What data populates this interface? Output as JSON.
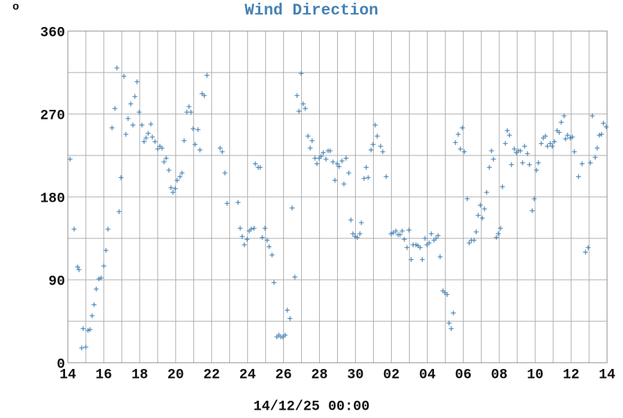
{
  "chart_data": {
    "type": "scatter",
    "title": "Wind Direction",
    "corner_label": "o",
    "xlabel": "14/12/25 00:00",
    "color": "#4682b4",
    "marker": "+",
    "grid": true,
    "xlim": [
      0,
      30
    ],
    "ylim": [
      0,
      360
    ],
    "yticks": [
      0,
      90,
      180,
      270,
      360
    ],
    "ygrid": [
      45,
      135,
      225,
      315
    ],
    "xticks": [
      {
        "value": 0,
        "label": "14"
      },
      {
        "value": 2,
        "label": "16"
      },
      {
        "value": 4,
        "label": "18"
      },
      {
        "value": 6,
        "label": "20"
      },
      {
        "value": 8,
        "label": "22"
      },
      {
        "value": 10,
        "label": "24"
      },
      {
        "value": 12,
        "label": "26"
      },
      {
        "value": 14,
        "label": "28"
      },
      {
        "value": 16,
        "label": "30"
      },
      {
        "value": 18,
        "label": "02"
      },
      {
        "value": 20,
        "label": "04"
      },
      {
        "value": 22,
        "label": "06"
      },
      {
        "value": 24,
        "label": "08"
      },
      {
        "value": 26,
        "label": "10"
      },
      {
        "value": 28,
        "label": "12"
      },
      {
        "value": 30,
        "label": "14"
      }
    ],
    "xgrid": [
      1,
      3,
      5,
      7,
      9,
      11,
      13,
      15,
      17,
      19,
      21,
      23,
      25,
      27,
      29
    ],
    "x": [
      0.12,
      0.35,
      0.54,
      0.62,
      0.77,
      0.85,
      1.0,
      1.12,
      1.23,
      1.35,
      1.46,
      1.58,
      1.73,
      1.85,
      2.0,
      2.12,
      2.23,
      2.46,
      2.62,
      2.73,
      2.85,
      2.96,
      3.12,
      3.23,
      3.35,
      3.5,
      3.62,
      3.73,
      3.85,
      3.97,
      4.12,
      4.24,
      4.35,
      4.47,
      4.62,
      4.7,
      4.85,
      5.0,
      5.12,
      5.24,
      5.35,
      5.47,
      5.62,
      5.74,
      5.85,
      5.97,
      6.08,
      6.24,
      6.35,
      6.47,
      6.62,
      6.74,
      6.85,
      6.97,
      7.08,
      7.24,
      7.35,
      7.47,
      7.59,
      7.74,
      8.47,
      8.59,
      8.74,
      8.86,
      9.47,
      9.59,
      9.7,
      9.82,
      9.97,
      10.09,
      10.2,
      10.36,
      10.43,
      10.59,
      10.7,
      10.82,
      10.97,
      11.09,
      11.2,
      11.36,
      11.47,
      11.63,
      11.74,
      11.86,
      11.97,
      12.09,
      12.21,
      12.36,
      12.48,
      12.63,
      12.75,
      12.86,
      12.98,
      13.09,
      13.21,
      13.36,
      13.48,
      13.59,
      13.75,
      13.86,
      13.98,
      14.09,
      14.21,
      14.36,
      14.48,
      14.59,
      14.75,
      14.86,
      14.98,
      15.09,
      15.25,
      15.36,
      15.48,
      15.63,
      15.75,
      15.86,
      15.98,
      16.1,
      16.25,
      16.33,
      16.48,
      16.6,
      16.71,
      16.87,
      16.98,
      17.1,
      17.21,
      17.4,
      17.52,
      17.71,
      17.98,
      18.1,
      18.25,
      18.37,
      18.48,
      18.6,
      18.72,
      18.87,
      18.98,
      19.1,
      19.21,
      19.37,
      19.48,
      19.6,
      19.72,
      19.87,
      19.98,
      20.1,
      20.22,
      20.37,
      20.48,
      20.6,
      20.71,
      20.87,
      20.98,
      21.1,
      21.21,
      21.33,
      21.45,
      21.56,
      21.72,
      21.84,
      21.95,
      22.06,
      22.22,
      22.33,
      22.45,
      22.6,
      22.72,
      22.83,
      22.95,
      23.06,
      23.18,
      23.3,
      23.45,
      23.57,
      23.68,
      23.84,
      23.95,
      24.07,
      24.18,
      24.34,
      24.45,
      24.57,
      24.68,
      24.84,
      24.95,
      25.07,
      25.18,
      25.3,
      25.41,
      25.57,
      25.68,
      25.84,
      25.95,
      26.07,
      26.18,
      26.34,
      26.45,
      26.57,
      26.68,
      26.84,
      26.95,
      27.07,
      27.22,
      27.34,
      27.45,
      27.61,
      27.69,
      27.8,
      27.95,
      28.07,
      28.18,
      28.41,
      28.61,
      28.8,
      28.95,
      29.07,
      29.18,
      29.34,
      29.45,
      29.57,
      29.69,
      29.8,
      29.95
    ],
    "values": [
      221,
      145,
      104,
      101,
      16,
      37,
      17,
      35,
      36,
      51,
      63,
      80,
      91,
      92,
      105,
      122,
      145,
      255,
      276,
      320,
      164,
      201,
      311,
      248,
      265,
      281,
      258,
      289,
      305,
      272,
      258,
      240,
      244,
      249,
      259,
      245,
      240,
      232,
      235,
      233,
      218,
      222,
      209,
      190,
      185,
      189,
      198,
      202,
      206,
      241,
      272,
      278,
      272,
      254,
      237,
      253,
      231,
      292,
      290,
      312,
      233,
      229,
      206,
      173,
      174,
      146,
      137,
      128,
      134,
      143,
      145,
      146,
      216,
      212,
      212,
      136,
      146,
      133,
      126,
      117,
      87,
      28,
      30,
      28,
      28,
      30,
      57,
      48,
      168,
      93,
      290,
      273,
      314,
      281,
      276,
      246,
      233,
      241,
      222,
      216,
      222,
      224,
      228,
      221,
      230,
      230,
      218,
      198,
      216,
      213,
      219,
      194,
      222,
      206,
      155,
      140,
      137,
      136,
      140,
      152,
      200,
      212,
      201,
      231,
      237,
      258,
      246,
      235,
      229,
      202,
      140,
      141,
      143,
      139,
      139,
      143,
      134,
      125,
      144,
      112,
      128,
      128,
      127,
      125,
      112,
      135,
      128,
      130,
      140,
      133,
      135,
      138,
      115,
      78,
      76,
      74,
      43,
      37,
      54,
      239,
      248,
      232,
      255,
      229,
      178,
      130,
      133,
      133,
      142,
      160,
      171,
      157,
      167,
      185,
      212,
      230,
      221,
      136,
      140,
      146,
      191,
      238,
      252,
      247,
      215,
      232,
      228,
      230,
      230,
      217,
      235,
      227,
      215,
      165,
      178,
      209,
      217,
      238,
      244,
      246,
      235,
      238,
      235,
      240,
      252,
      250,
      261,
      268,
      243,
      247,
      244,
      245,
      229,
      202,
      216,
      120,
      125,
      217,
      268,
      223,
      233,
      247,
      248,
      260,
      256
    ]
  }
}
